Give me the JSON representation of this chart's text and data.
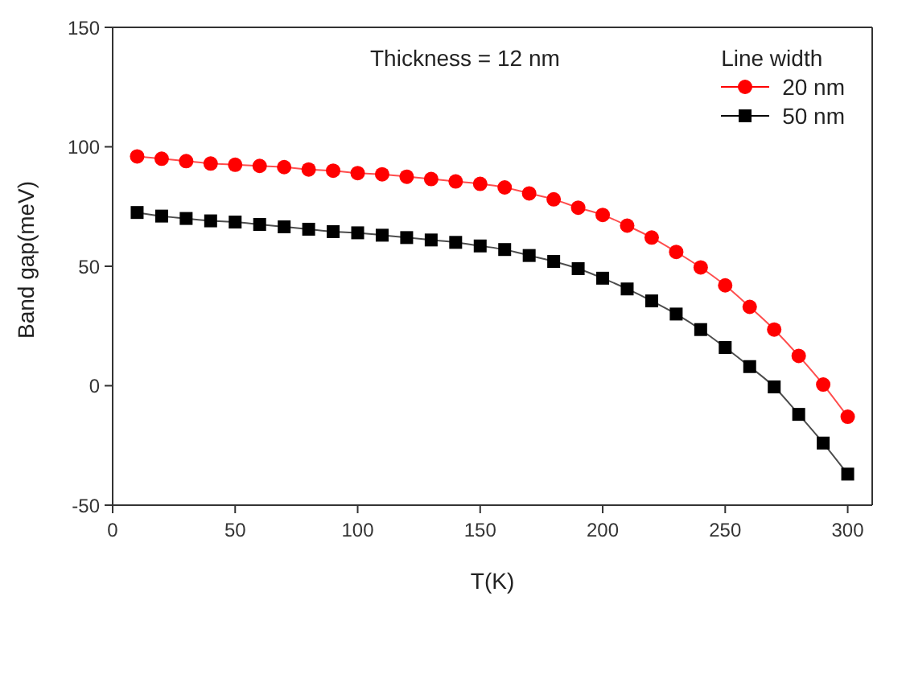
{
  "chart_data": {
    "type": "line",
    "xlabel": "T(K)",
    "ylabel": "Band gap(meV)",
    "legend_title": "Line width",
    "annotations": [
      "Thickness = 12 nm"
    ],
    "x": [
      10,
      20,
      30,
      40,
      50,
      60,
      70,
      80,
      90,
      100,
      110,
      120,
      130,
      140,
      150,
      160,
      170,
      180,
      190,
      200,
      210,
      220,
      230,
      240,
      250,
      260,
      270,
      280,
      290,
      300
    ],
    "series": [
      {
        "name": "20 nm",
        "color": "#ff0000",
        "marker": "circle",
        "values": [
          96,
          95,
          94,
          93,
          92.5,
          92,
          91.5,
          90.5,
          90,
          89,
          88.5,
          87.5,
          86.5,
          85.5,
          84.5,
          83,
          80.5,
          78,
          74.5,
          71.5,
          67,
          62,
          56,
          49.5,
          42,
          33,
          23.5,
          12.5,
          0.5,
          -13
        ]
      },
      {
        "name": "50 nm",
        "color": "#000000",
        "marker": "square",
        "values": [
          72.5,
          71,
          70,
          69,
          68.5,
          67.5,
          66.5,
          65.5,
          64.5,
          64,
          63,
          62,
          61,
          60,
          58.5,
          57,
          54.5,
          52,
          49,
          45,
          40.5,
          35.5,
          30,
          23.5,
          16,
          8,
          -0.5,
          -12,
          -24,
          -37
        ]
      }
    ],
    "xlim": [
      0,
      310
    ],
    "xticks": [
      0,
      50,
      100,
      150,
      200,
      250,
      300
    ],
    "ylim": [
      -50,
      150
    ],
    "yticks": [
      -50,
      0,
      50,
      100,
      150
    ],
    "legend": "top right",
    "grid": false,
    "line_style": "solid"
  }
}
